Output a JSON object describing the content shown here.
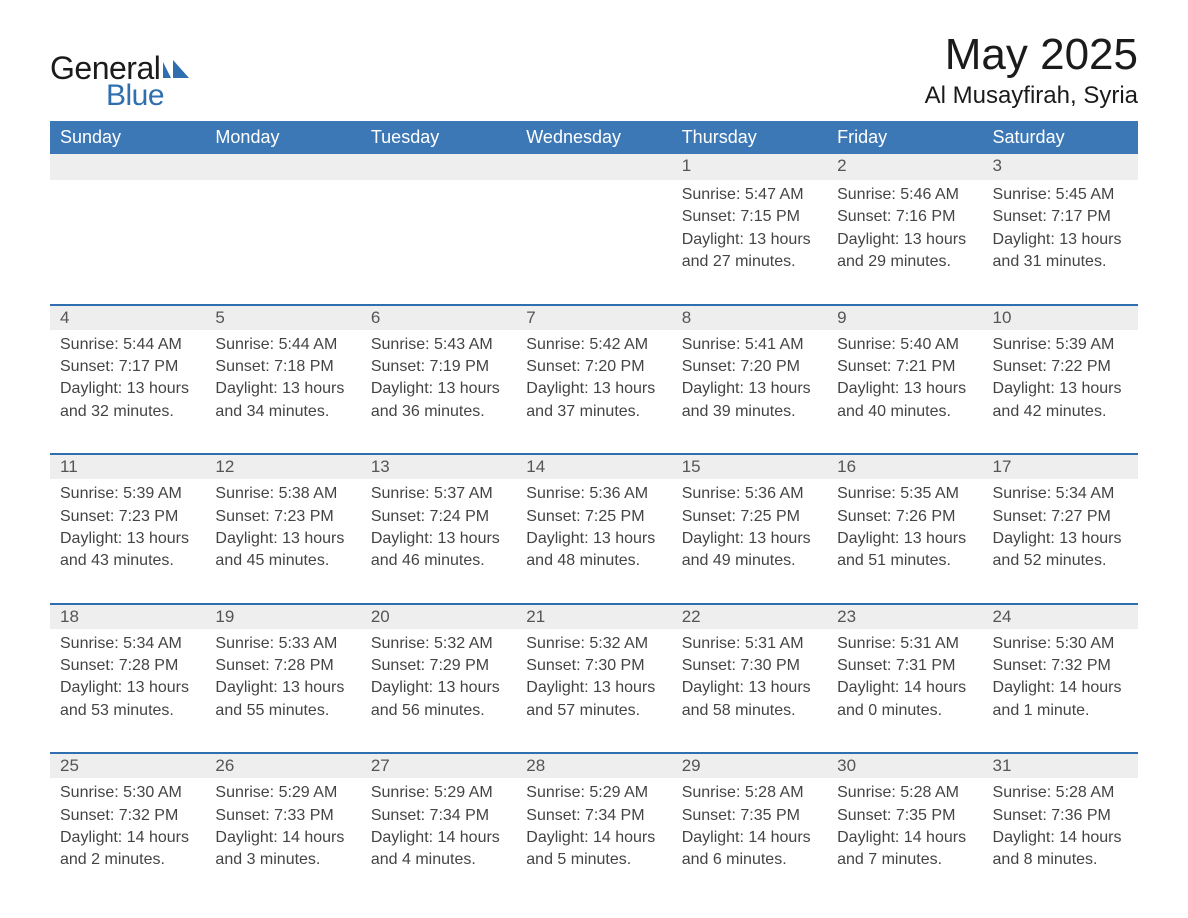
{
  "logo": {
    "general": "General",
    "blue": "Blue"
  },
  "title": "May 2025",
  "location": "Al Musayfirah, Syria",
  "colors": {
    "header_bg": "#3d78b6",
    "header_text": "#ffffff",
    "row_border": "#2f6fb0",
    "daynum_bg": "#eeeeee",
    "logo_blue": "#2f6fb0",
    "text": "#444444"
  },
  "weekdays": [
    "Sunday",
    "Monday",
    "Tuesday",
    "Wednesday",
    "Thursday",
    "Friday",
    "Saturday"
  ],
  "weeks": [
    [
      null,
      null,
      null,
      null,
      {
        "n": "1",
        "sunrise": "5:47 AM",
        "sunset": "7:15 PM",
        "daylight": "13 hours and 27 minutes."
      },
      {
        "n": "2",
        "sunrise": "5:46 AM",
        "sunset": "7:16 PM",
        "daylight": "13 hours and 29 minutes."
      },
      {
        "n": "3",
        "sunrise": "5:45 AM",
        "sunset": "7:17 PM",
        "daylight": "13 hours and 31 minutes."
      }
    ],
    [
      {
        "n": "4",
        "sunrise": "5:44 AM",
        "sunset": "7:17 PM",
        "daylight": "13 hours and 32 minutes."
      },
      {
        "n": "5",
        "sunrise": "5:44 AM",
        "sunset": "7:18 PM",
        "daylight": "13 hours and 34 minutes."
      },
      {
        "n": "6",
        "sunrise": "5:43 AM",
        "sunset": "7:19 PM",
        "daylight": "13 hours and 36 minutes."
      },
      {
        "n": "7",
        "sunrise": "5:42 AM",
        "sunset": "7:20 PM",
        "daylight": "13 hours and 37 minutes."
      },
      {
        "n": "8",
        "sunrise": "5:41 AM",
        "sunset": "7:20 PM",
        "daylight": "13 hours and 39 minutes."
      },
      {
        "n": "9",
        "sunrise": "5:40 AM",
        "sunset": "7:21 PM",
        "daylight": "13 hours and 40 minutes."
      },
      {
        "n": "10",
        "sunrise": "5:39 AM",
        "sunset": "7:22 PM",
        "daylight": "13 hours and 42 minutes."
      }
    ],
    [
      {
        "n": "11",
        "sunrise": "5:39 AM",
        "sunset": "7:23 PM",
        "daylight": "13 hours and 43 minutes."
      },
      {
        "n": "12",
        "sunrise": "5:38 AM",
        "sunset": "7:23 PM",
        "daylight": "13 hours and 45 minutes."
      },
      {
        "n": "13",
        "sunrise": "5:37 AM",
        "sunset": "7:24 PM",
        "daylight": "13 hours and 46 minutes."
      },
      {
        "n": "14",
        "sunrise": "5:36 AM",
        "sunset": "7:25 PM",
        "daylight": "13 hours and 48 minutes."
      },
      {
        "n": "15",
        "sunrise": "5:36 AM",
        "sunset": "7:25 PM",
        "daylight": "13 hours and 49 minutes."
      },
      {
        "n": "16",
        "sunrise": "5:35 AM",
        "sunset": "7:26 PM",
        "daylight": "13 hours and 51 minutes."
      },
      {
        "n": "17",
        "sunrise": "5:34 AM",
        "sunset": "7:27 PM",
        "daylight": "13 hours and 52 minutes."
      }
    ],
    [
      {
        "n": "18",
        "sunrise": "5:34 AM",
        "sunset": "7:28 PM",
        "daylight": "13 hours and 53 minutes."
      },
      {
        "n": "19",
        "sunrise": "5:33 AM",
        "sunset": "7:28 PM",
        "daylight": "13 hours and 55 minutes."
      },
      {
        "n": "20",
        "sunrise": "5:32 AM",
        "sunset": "7:29 PM",
        "daylight": "13 hours and 56 minutes."
      },
      {
        "n": "21",
        "sunrise": "5:32 AM",
        "sunset": "7:30 PM",
        "daylight": "13 hours and 57 minutes."
      },
      {
        "n": "22",
        "sunrise": "5:31 AM",
        "sunset": "7:30 PM",
        "daylight": "13 hours and 58 minutes."
      },
      {
        "n": "23",
        "sunrise": "5:31 AM",
        "sunset": "7:31 PM",
        "daylight": "14 hours and 0 minutes."
      },
      {
        "n": "24",
        "sunrise": "5:30 AM",
        "sunset": "7:32 PM",
        "daylight": "14 hours and 1 minute."
      }
    ],
    [
      {
        "n": "25",
        "sunrise": "5:30 AM",
        "sunset": "7:32 PM",
        "daylight": "14 hours and 2 minutes."
      },
      {
        "n": "26",
        "sunrise": "5:29 AM",
        "sunset": "7:33 PM",
        "daylight": "14 hours and 3 minutes."
      },
      {
        "n": "27",
        "sunrise": "5:29 AM",
        "sunset": "7:34 PM",
        "daylight": "14 hours and 4 minutes."
      },
      {
        "n": "28",
        "sunrise": "5:29 AM",
        "sunset": "7:34 PM",
        "daylight": "14 hours and 5 minutes."
      },
      {
        "n": "29",
        "sunrise": "5:28 AM",
        "sunset": "7:35 PM",
        "daylight": "14 hours and 6 minutes."
      },
      {
        "n": "30",
        "sunrise": "5:28 AM",
        "sunset": "7:35 PM",
        "daylight": "14 hours and 7 minutes."
      },
      {
        "n": "31",
        "sunrise": "5:28 AM",
        "sunset": "7:36 PM",
        "daylight": "14 hours and 8 minutes."
      }
    ]
  ],
  "labels": {
    "sunrise": "Sunrise: ",
    "sunset": "Sunset: ",
    "daylight": "Daylight: "
  }
}
